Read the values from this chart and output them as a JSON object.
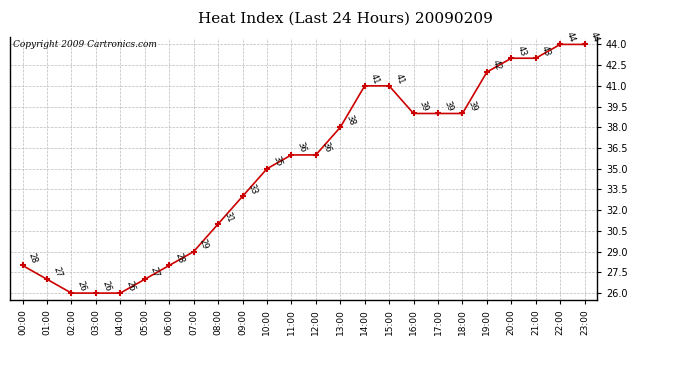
{
  "title": "Heat Index (Last 24 Hours) 20090209",
  "copyright_text": "Copyright 2009 Cartronics.com",
  "times": [
    "00:00",
    "01:00",
    "02:00",
    "03:00",
    "04:00",
    "05:00",
    "06:00",
    "07:00",
    "08:00",
    "09:00",
    "10:00",
    "11:00",
    "12:00",
    "13:00",
    "14:00",
    "15:00",
    "16:00",
    "17:00",
    "18:00",
    "19:00",
    "20:00",
    "21:00",
    "22:00",
    "23:00"
  ],
  "values": [
    28,
    27,
    26,
    26,
    26,
    27,
    28,
    29,
    31,
    33,
    35,
    36,
    36,
    38,
    41,
    41,
    39,
    39,
    39,
    42,
    43,
    43,
    44,
    44
  ],
  "ylim": [
    25.5,
    44.5
  ],
  "yticks": [
    26.0,
    27.5,
    29.0,
    30.5,
    32.0,
    33.5,
    35.0,
    36.5,
    38.0,
    39.5,
    41.0,
    42.5,
    44.0
  ],
  "line_color": "#cc0000",
  "marker_color": "#cc0000",
  "bg_color": "#ffffff",
  "grid_color": "#bbbbbb",
  "title_fontsize": 11,
  "label_fontsize": 6.5,
  "annotation_fontsize": 6,
  "copyright_fontsize": 6.5
}
